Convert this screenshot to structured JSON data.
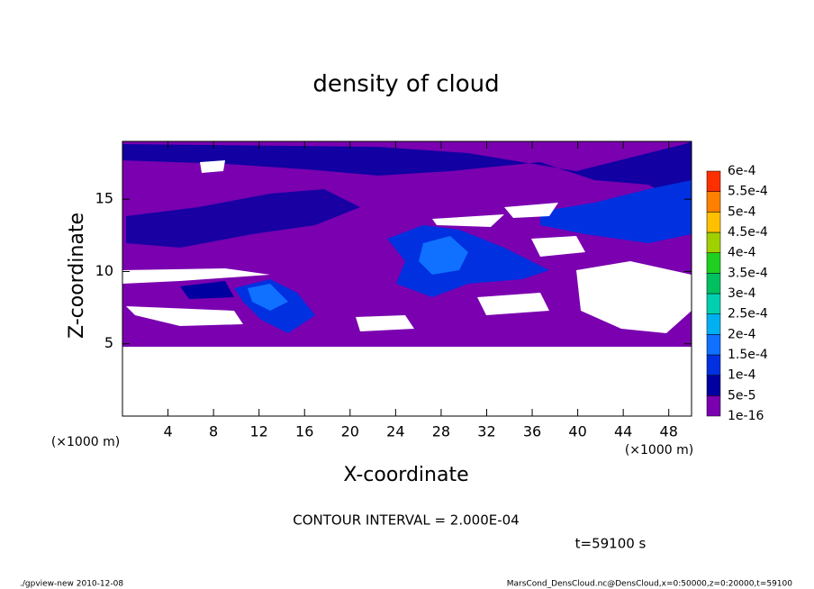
{
  "chart_data": {
    "type": "contour",
    "title": "density of cloud",
    "x_label": "X-coordinate",
    "y_label": "Z-coordinate",
    "x_unit": "(×1000 m)",
    "y_unit": "(×1000 m)",
    "xlim": [
      0,
      50
    ],
    "ylim": [
      0,
      19
    ],
    "xticks": [
      4,
      8,
      12,
      16,
      20,
      24,
      28,
      32,
      36,
      40,
      44,
      48
    ],
    "yticks": [
      5,
      10,
      15
    ],
    "colorbar": {
      "labels": [
        "1e-16",
        "5e-5",
        "1e-4",
        "1.5e-4",
        "2e-4",
        "2.5e-4",
        "3e-4",
        "3.5e-4",
        "4e-4",
        "4.5e-4",
        "5e-4",
        "5.5e-4",
        "6e-4"
      ],
      "colors": [
        "#7a00b0",
        "#0000a0",
        "#0030e0",
        "#1070ff",
        "#00b0f0",
        "#00d0b0",
        "#00c060",
        "#20d020",
        "#a0d000",
        "#ffc000",
        "#ff8000",
        "#ff3000",
        "#ff8080"
      ]
    },
    "contour_interval": "CONTOUR INTERVAL = 2.000E-04",
    "time_label": "t=59100 s",
    "footer_left": "./gpview-new   2010-12-08",
    "footer_right": "MarsCond_DensCloud.nc@DensCloud,x=0:50000,z=0:20000,t=59100"
  }
}
